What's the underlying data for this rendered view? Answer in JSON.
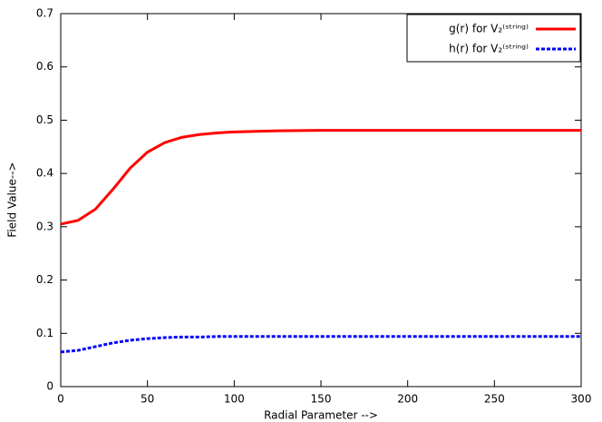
{
  "chart_data": {
    "type": "line",
    "xlabel": "Radial Parameter -->",
    "ylabel": "Field Value-->",
    "x": [
      0,
      10,
      20,
      30,
      40,
      50,
      60,
      70,
      80,
      90,
      100,
      125,
      150,
      200,
      250,
      300
    ],
    "series": [
      {
        "name": "g(r) for V₂⁽ˢᵗʳⁱⁿᵍ⁾",
        "color": "#ff0000",
        "dash": false,
        "values": [
          0.305,
          0.312,
          0.333,
          0.37,
          0.41,
          0.44,
          0.458,
          0.468,
          0.473,
          0.476,
          0.478,
          0.48,
          0.481,
          0.481,
          0.481,
          0.481
        ]
      },
      {
        "name": "h(r) for V₂⁽ˢᵗʳⁱⁿᵍ⁾",
        "color": "#0000ff",
        "dash": true,
        "values": [
          0.065,
          0.068,
          0.075,
          0.082,
          0.087,
          0.09,
          0.092,
          0.093,
          0.093,
          0.094,
          0.094,
          0.094,
          0.094,
          0.094,
          0.094,
          0.094
        ]
      }
    ],
    "xlim": [
      0,
      300
    ],
    "xticks": [
      0,
      50,
      100,
      150,
      200,
      250,
      300
    ],
    "ylim": [
      0,
      0.7
    ],
    "yticks": [
      0,
      0.1,
      0.2,
      0.3,
      0.4,
      0.5,
      0.6,
      0.7
    ],
    "grid": false,
    "legend": "top-right"
  }
}
